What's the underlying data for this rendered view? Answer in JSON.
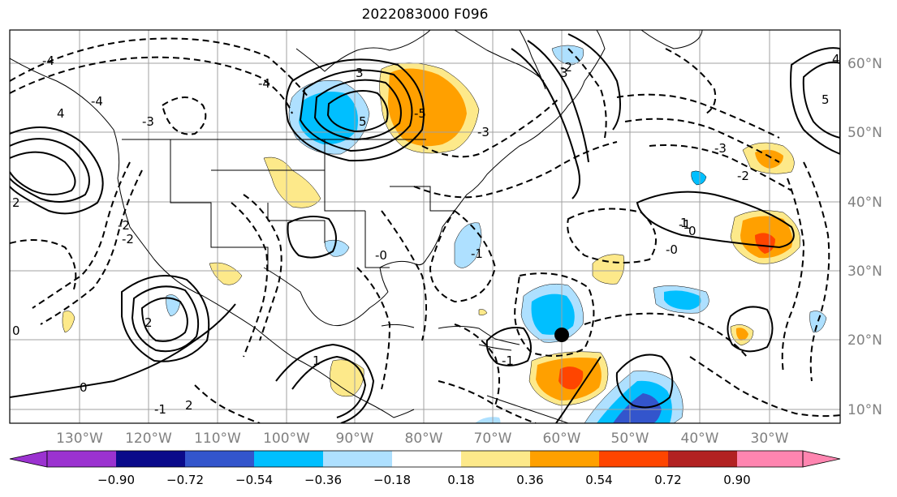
{
  "title": "2022083000 F096",
  "lon_labels": [
    "130°W",
    "120°W",
    "110°W",
    "100°W",
    "90°W",
    "80°W",
    "70°W",
    "60°W",
    "50°W",
    "40°W",
    "30°W"
  ],
  "lat_labels": [
    "60°N",
    "50°N",
    "40°N",
    "30°N",
    "20°N",
    "10°N"
  ],
  "colorbar": {
    "tick_labels": [
      "−0.90",
      "−0.72",
      "−0.54",
      "−0.36",
      "−0.18",
      "0.18",
      "0.36",
      "0.54",
      "0.72",
      "0.90"
    ],
    "colors": [
      "#9b32d0",
      "#0a0a8a",
      "#3355cc",
      "#00bfff",
      "#aee0ff",
      "#ffffff",
      "#fde98a",
      "#ffa000",
      "#ff4500",
      "#b22222",
      "#ff85b0"
    ]
  },
  "contour_labels": [
    "0",
    "2",
    "-2",
    "3",
    "5",
    "-5",
    "1",
    "-1",
    "4",
    "-3",
    "-4",
    "-0",
    "-3",
    "-2",
    "-1",
    "2",
    "1",
    "-2",
    "0",
    "-4",
    "-1",
    "0",
    "-0",
    "5",
    "-2",
    "-3",
    "4",
    "-1",
    "2",
    "3",
    "-4"
  ],
  "colors": {
    "grid": "#a0a0a0",
    "tick_text": "#808080",
    "coast": "#000000"
  }
}
